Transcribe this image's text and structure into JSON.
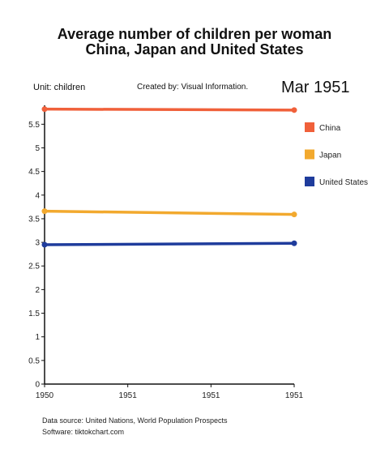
{
  "chart_data": {
    "type": "line",
    "title_line1": "Average number of children per woman",
    "title_line2": "China, Japan and United States",
    "unit_label": "Unit: children",
    "credit": "Created by: Visual Information.",
    "period_label": "Mar 1951",
    "x_tick_labels": [
      "1950",
      "1951",
      "1951",
      "1951"
    ],
    "y_ticks": [
      0,
      0.5,
      1,
      1.5,
      2,
      2.5,
      3,
      3.5,
      4,
      4.5,
      5,
      5.5
    ],
    "y_tick_labels": [
      "0",
      "0.5",
      "1",
      "1.5",
      "2",
      "2.5",
      "3",
      "3.5",
      "4",
      "4.5",
      "5",
      "5.5"
    ],
    "ylim": [
      0,
      5.9
    ],
    "x_count": 4,
    "grid": false,
    "legend_position": "right",
    "series": [
      {
        "name": "China",
        "color": "#f0603a",
        "start": 5.82,
        "end": 5.8
      },
      {
        "name": "Japan",
        "color": "#f2a92e",
        "start": 3.66,
        "end": 3.59
      },
      {
        "name": "United States",
        "color": "#1f3c9c",
        "start": 2.95,
        "end": 2.98
      }
    ]
  },
  "footer": {
    "source": "Data source: United Nations, World Population Prospects",
    "software": "Software: tiktokchart.com"
  }
}
